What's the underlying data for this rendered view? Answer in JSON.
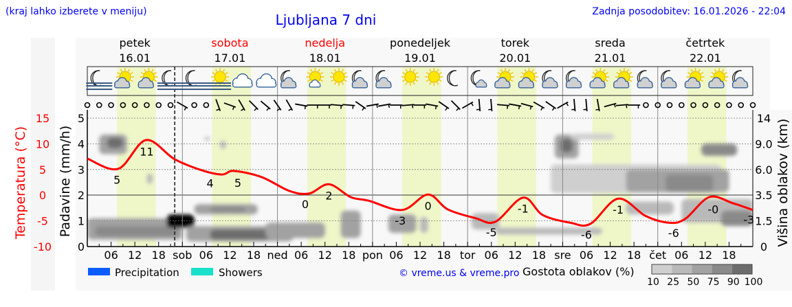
{
  "header": {
    "hint": "(kraj lahko izberete v meniju)",
    "title": "Ljubljana 7 dni",
    "updated": "Zadnja posodobitev: 16.01.2026 - 22:04"
  },
  "colors": {
    "text_link": "#0000ee",
    "temperature": "#ff0000",
    "daylight": "#eff7c9",
    "plot_bg": "#f8f8f8",
    "precipitation": "#0a5cff",
    "showers": "#19e0c8"
  },
  "days": [
    {
      "name": "petek",
      "date": "16.01",
      "abbr": "",
      "weekend": false
    },
    {
      "name": "sobota",
      "date": "17.01",
      "abbr": "sob",
      "weekend": true
    },
    {
      "name": "nedelja",
      "date": "18.01",
      "abbr": "ned",
      "weekend": true
    },
    {
      "name": "ponedeljek",
      "date": "19.01",
      "abbr": "pon",
      "weekend": false
    },
    {
      "name": "torek",
      "date": "20.01",
      "abbr": "tor",
      "weekend": false
    },
    {
      "name": "sreda",
      "date": "21.01",
      "abbr": "sre",
      "weekend": false
    },
    {
      "name": "četrtek",
      "date": "22.01",
      "abbr": "čet",
      "weekend": false
    }
  ],
  "hour_ticks": [
    "06",
    "12",
    "18"
  ],
  "legend": {
    "precipitation": "Precipitation",
    "showers": "Showers",
    "copyright": "© vreme.us & vreme.pro",
    "cloud_density": "Gostota oblakov (%)",
    "cloud_scale": [
      "10",
      "25",
      "50",
      "75",
      "90",
      "100"
    ]
  },
  "chart_data": {
    "type": "line",
    "title": "Ljubljana 7 dni",
    "x_unit": "hours from 16.01 00:00",
    "xlim": [
      0,
      168
    ],
    "now_hour": 22.07,
    "daylight_hours": [
      7.5,
      17.3
    ],
    "axes": {
      "temperature": {
        "label": "Temperatura (°C)",
        "ticks": [
          "15",
          "10",
          "5",
          "0",
          "-5",
          "-10"
        ],
        "lim": [
          -10,
          15
        ]
      },
      "precipitation": {
        "label": "Padavine (mm/h)",
        "ticks": [
          "5",
          "4",
          "3",
          "2",
          "1",
          "0"
        ],
        "lim": [
          0,
          5
        ]
      },
      "cloud_height": {
        "label": "Višina oblakov (km)",
        "ticks": [
          "14",
          "9.0",
          "6.0",
          "3.5",
          "1.5",
          "0"
        ]
      }
    },
    "temperature": [
      [
        0,
        7.1
      ],
      [
        7.8,
        5.1
      ],
      [
        14.8,
        10.7
      ],
      [
        22,
        7.0
      ],
      [
        29,
        4.8
      ],
      [
        34,
        4.0
      ],
      [
        37,
        4.7
      ],
      [
        44,
        3.5
      ],
      [
        51,
        0.8
      ],
      [
        56,
        0.3
      ],
      [
        61,
        2.1
      ],
      [
        66.5,
        -0.4
      ],
      [
        71,
        -1.1
      ],
      [
        79.5,
        -2.9
      ],
      [
        86,
        0.1
      ],
      [
        91,
        -2.8
      ],
      [
        98,
        -4.5
      ],
      [
        103,
        -5.2
      ],
      [
        110,
        -0.5
      ],
      [
        115,
        -3.9
      ],
      [
        122,
        -5.4
      ],
      [
        127,
        -5.6
      ],
      [
        134,
        -0.7
      ],
      [
        141,
        -4.1
      ],
      [
        147,
        -5.4
      ],
      [
        151,
        -4.6
      ],
      [
        157,
        -0.4
      ],
      [
        163,
        -1.6
      ],
      [
        168,
        -2.9
      ]
    ],
    "temperature_labels": [
      {
        "hour": 7.5,
        "value": "5"
      },
      {
        "hour": 15,
        "value": "11"
      },
      {
        "hour": 31,
        "value": "4"
      },
      {
        "hour": 38,
        "value": "5"
      },
      {
        "hour": 55,
        "value": "0"
      },
      {
        "hour": 61,
        "value": "2"
      },
      {
        "hour": 79,
        "value": "-3"
      },
      {
        "hour": 86,
        "value": "0"
      },
      {
        "hour": 102,
        "value": "-5"
      },
      {
        "hour": 110,
        "value": "-1"
      },
      {
        "hour": 126,
        "value": "-6"
      },
      {
        "hour": 134,
        "value": "-1"
      },
      {
        "hour": 148,
        "value": "-6"
      },
      {
        "hour": 158,
        "value": "-0"
      },
      {
        "hour": 167,
        "value": "-3"
      }
    ],
    "precipitation": [],
    "cloud_cover": [
      {
        "t": [
          0,
          24
        ],
        "km": [
          0.4,
          1.7
        ],
        "cover": 50
      },
      {
        "t": [
          2,
          23
        ],
        "km": [
          0.6,
          1.2
        ],
        "cover": 75
      },
      {
        "t": [
          20,
          27
        ],
        "km": [
          1.1,
          2.0
        ],
        "cover": 60
      },
      {
        "t": [
          27,
          43
        ],
        "km": [
          2.0,
          2.8
        ],
        "cover": 50
      },
      {
        "t": [
          31,
          40
        ],
        "km": [
          2.2,
          2.6
        ],
        "cover": 75
      },
      {
        "t": [
          25,
          52
        ],
        "km": [
          0.3,
          1.2
        ],
        "cover": 50
      },
      {
        "t": [
          31,
          46
        ],
        "km": [
          0.4,
          1.0
        ],
        "cover": 90
      },
      {
        "t": [
          45,
          60
        ],
        "km": [
          0.5,
          1.4
        ],
        "cover": 50
      },
      {
        "t": [
          3,
          10
        ],
        "km": [
          7.8,
          10.8
        ],
        "cover": 50
      },
      {
        "t": [
          5,
          9
        ],
        "km": [
          8.5,
          10.2
        ],
        "cover": 90
      },
      {
        "t": [
          15,
          16.5
        ],
        "km": [
          4.6,
          5.6
        ],
        "cover": 25
      },
      {
        "t": [
          29.5,
          31
        ],
        "km": [
          9.5,
          10.5
        ],
        "cover": 10
      },
      {
        "t": [
          33.5,
          35
        ],
        "km": [
          8.4,
          9.6
        ],
        "cover": 25
      },
      {
        "t": [
          64,
          69
        ],
        "km": [
          0.5,
          2.3
        ],
        "cover": 50
      },
      {
        "t": [
          76,
          83
        ],
        "km": [
          0.8,
          2.0
        ],
        "cover": 50
      },
      {
        "t": [
          84,
          86
        ],
        "km": [
          0.8,
          1.8
        ],
        "cover": 25
      },
      {
        "t": [
          97,
          104
        ],
        "km": [
          1.0,
          2.1
        ],
        "cover": 25
      },
      {
        "t": [
          103,
          130
        ],
        "km": [
          0.7,
          1.1
        ],
        "cover": 25
      },
      {
        "t": [
          118,
          124
        ],
        "km": [
          7.3,
          10.8
        ],
        "cover": 50
      },
      {
        "t": [
          119.5,
          122.5
        ],
        "km": [
          8.0,
          10.0
        ],
        "cover": 90
      },
      {
        "t": [
          117,
          160
        ],
        "km": [
          3.7,
          6.6
        ],
        "cover": 10
      },
      {
        "t": [
          136,
          162
        ],
        "km": [
          3.8,
          6.0
        ],
        "cover": 50
      },
      {
        "t": [
          146,
          158
        ],
        "km": [
          3.8,
          5.5
        ],
        "cover": 75
      },
      {
        "t": [
          136,
          148
        ],
        "km": [
          2.0,
          3.0
        ],
        "cover": 25
      },
      {
        "t": [
          150,
          168
        ],
        "km": [
          1.4,
          3.2
        ],
        "cover": 25
      },
      {
        "t": [
          160,
          168
        ],
        "km": [
          1.2,
          2.3
        ],
        "cover": 75
      },
      {
        "t": [
          155,
          164
        ],
        "km": [
          7.6,
          9.0
        ],
        "cover": 75
      },
      {
        "t": [
          122,
          133
        ],
        "km": [
          9.8,
          11
        ],
        "cover": 10
      }
    ],
    "weather_icons": [
      "moon-fog",
      "sun-cloud",
      "sun-cloud",
      "moon-fog",
      "moon-fog",
      "sun-fog",
      "cloud",
      "cloud",
      "moon-cloud",
      "sun-small-cloud",
      "sun",
      "moon-cloud",
      "moon-cloud",
      "sun",
      "sun",
      "moon",
      "moon-small-cloud",
      "sun-cloud",
      "sun-cloud",
      "moon-cloud",
      "moon-cloud",
      "sun-cloud",
      "sun-cloud",
      "moon-cloud",
      "moon-cloud",
      "sun-cloud",
      "sun-cloud",
      "moon-cloud"
    ],
    "wind_barb_tilt_deg": [
      "calm",
      "calm",
      "calm",
      "calm",
      "calm",
      "calm",
      "calm",
      "calm",
      30,
      "calm",
      "calm",
      70,
      20,
      60,
      45,
      40,
      55,
      60,
      10,
      0,
      0,
      5,
      5,
      35,
      -10,
      -10,
      0,
      -5,
      0,
      10,
      35,
      45,
      -30,
      85,
      85,
      5,
      10,
      15,
      30,
      35,
      -30,
      85,
      85,
      80,
      -15,
      -5,
      0,
      "calm",
      "calm",
      "calm",
      "calm",
      "calm",
      "calm",
      "calm",
      "calm",
      "calm",
      "calm"
    ]
  }
}
